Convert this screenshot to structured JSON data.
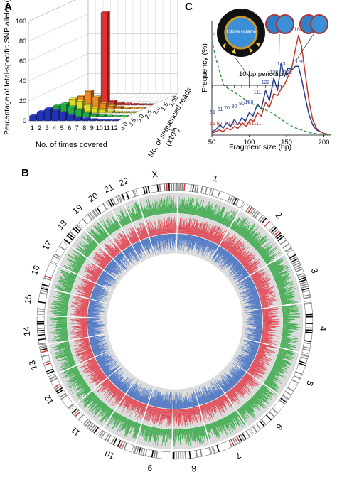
{
  "panels": {
    "a": "A",
    "b": "B",
    "c": "C"
  },
  "chart_data": [
    {
      "type": "bar",
      "panel": "A",
      "title": "",
      "ylabel": "Percentage of fetal-specific SNP alleles (%)",
      "xlabel": "No. of times covered",
      "zlabel": "No. of sequenced reads",
      "zlabel_unit": "(x10",
      "zlabel_exp": "9",
      "zlabel_close": ")",
      "yticks": [
        "0",
        "20",
        "40",
        "60",
        "80",
        "100"
      ],
      "ylim": [
        0,
        100
      ],
      "categories": [
        "1",
        "2",
        "3",
        "4",
        "5",
        "6",
        "7",
        "8",
        "9",
        "10",
        "11",
        "12"
      ],
      "depth_labels": [
        "4.0",
        "3.5",
        "3.0",
        "2.5",
        "2.0",
        "1.5",
        "1.00"
      ],
      "series": [
        {
          "color": "#2233bb",
          "values": [
            5,
            9,
            12,
            10,
            8,
            5,
            3,
            2,
            1,
            0.5,
            0.3,
            0.2
          ]
        },
        {
          "color": "#22aa44",
          "values": [
            3,
            7,
            11,
            13,
            10,
            7,
            4,
            2,
            1,
            0.5,
            0.3,
            0.2
          ]
        },
        {
          "color": "#dddd22",
          "values": [
            2,
            5,
            9,
            14,
            12,
            8,
            5,
            3,
            1.5,
            0.6,
            0.3,
            0.2
          ]
        },
        {
          "color": "#ee8822",
          "values": [
            1,
            3,
            7,
            13,
            18,
            12,
            6,
            3,
            1.5,
            0.6,
            0.3,
            0.2
          ]
        },
        {
          "color": "#dd3333",
          "values": [
            0.5,
            1,
            2,
            4,
            6,
            93,
            4,
            2,
            1,
            0.5,
            0.3,
            0.2
          ]
        }
      ]
    },
    {
      "type": "line",
      "panel": "C",
      "title": "",
      "xlabel": "Fragment size (bp)",
      "ylabel": "Frequency (%)",
      "xlim": [
        50,
        210
      ],
      "xticks": [
        "50",
        "100",
        "150",
        "200"
      ],
      "annotations": {
        "periodicity": "10-bp periodicity",
        "octamer": "Histone octamer",
        "left_peak": "61",
        "peak_166_top": "166",
        "peak_166_blue": "166",
        "blue_labels": [
          {
            "x": 143,
            "label": "143"
          },
          {
            "x": 133,
            "label": "133"
          },
          {
            "x": 152,
            "label": "152"
          },
          {
            "x": 122,
            "label": "122"
          },
          {
            "x": 111,
            "label": "111"
          },
          {
            "x": 100,
            "label": "100"
          },
          {
            "x": 90,
            "label": "90"
          },
          {
            "x": 80,
            "label": "80"
          },
          {
            "x": 70,
            "label": "70"
          },
          {
            "x": 61,
            "label": "61"
          },
          {
            "x": 51,
            "label": "51"
          }
        ],
        "red_labels": [
          {
            "x": 51,
            "label": "51"
          },
          {
            "x": 60,
            "label": "60"
          },
          {
            "x": 70,
            "label": "70"
          },
          {
            "x": 80,
            "label": "80"
          },
          {
            "x": 91,
            "label": "91"
          },
          {
            "x": 101,
            "label": "101"
          },
          {
            "x": 111,
            "label": "111"
          }
        ]
      },
      "series": [
        {
          "color": "#2a3d8f",
          "x": [
            50,
            55,
            61,
            65,
            70,
            75,
            80,
            85,
            90,
            95,
            100,
            105,
            111,
            116,
            122,
            127,
            133,
            138,
            143,
            147,
            152,
            157,
            162,
            166,
            170,
            175,
            180,
            185,
            190,
            195,
            200,
            205
          ],
          "y": [
            0.2,
            0.3,
            0.6,
            0.4,
            0.7,
            0.5,
            0.9,
            0.6,
            1.0,
            0.8,
            1.3,
            1.1,
            1.8,
            1.5,
            2.6,
            2.0,
            3.3,
            2.6,
            4.2,
            3.4,
            3.9,
            3.8,
            4.0,
            4.0,
            3.3,
            2.2,
            1.2,
            0.6,
            0.3,
            0.2,
            0.1,
            0.05
          ]
        },
        {
          "color": "#c0392b",
          "x": [
            50,
            55,
            60,
            65,
            70,
            75,
            80,
            85,
            91,
            96,
            101,
            106,
            111,
            116,
            122,
            127,
            133,
            138,
            143,
            147,
            152,
            157,
            162,
            166,
            170,
            175,
            180,
            185,
            190,
            195,
            200,
            205
          ],
          "y": [
            0.1,
            0.2,
            0.3,
            0.2,
            0.4,
            0.3,
            0.5,
            0.4,
            0.7,
            0.5,
            0.9,
            0.8,
            1.3,
            1.1,
            1.9,
            1.6,
            2.4,
            2.3,
            2.7,
            2.9,
            3.4,
            3.9,
            5.0,
            5.8,
            5.2,
            3.6,
            2.0,
            0.9,
            0.4,
            0.2,
            0.1,
            0.05
          ]
        },
        {
          "color": "#3a9a4a",
          "dashed": true,
          "x": [
            50,
            55,
            61,
            66,
            72,
            80,
            90,
            100,
            110,
            120,
            130,
            140,
            150,
            160,
            170,
            180,
            190,
            200,
            210
          ],
          "y": [
            5.5,
            4.5,
            3.6,
            2.9,
            2.7,
            2.5,
            2.2,
            1.9,
            1.7,
            1.5,
            1.3,
            1.0,
            0.7,
            0.45,
            0.3,
            0.15,
            0.08,
            0.04,
            0.02
          ]
        }
      ]
    },
    {
      "type": "circos",
      "panel": "B",
      "title": "",
      "chromosomes": [
        "1",
        "2",
        "3",
        "4",
        "5",
        "6",
        "7",
        "8",
        "9",
        "10",
        "11",
        "12",
        "13",
        "14",
        "15",
        "16",
        "17",
        "18",
        "19",
        "20",
        "21",
        "22",
        "X"
      ],
      "tracks": [
        {
          "color": "#3aaa4a"
        },
        {
          "color": "#e23c4a"
        },
        {
          "color": "#3a6ac0"
        }
      ]
    }
  ]
}
